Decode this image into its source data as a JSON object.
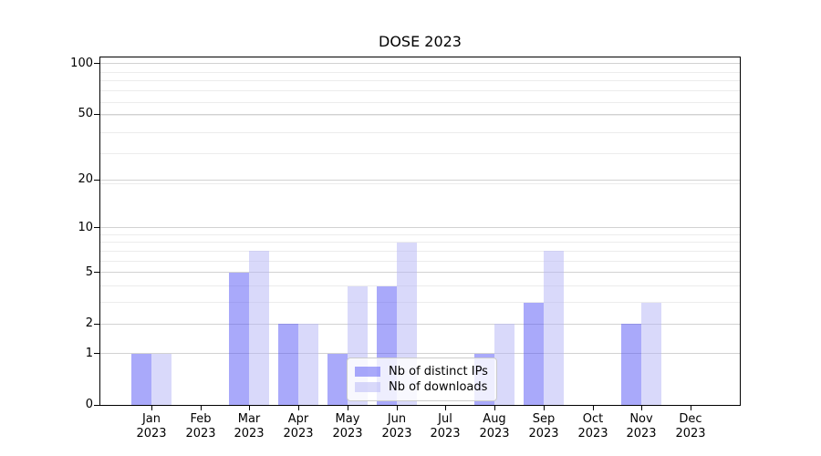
{
  "title": "DOSE 2023",
  "chart_data": {
    "type": "bar",
    "title": "DOSE 2023",
    "categories": [
      "Jan 2023",
      "Feb 2023",
      "Mar 2023",
      "Apr 2023",
      "May 2023",
      "Jun 2023",
      "Jul 2023",
      "Aug 2023",
      "Sep 2023",
      "Oct 2023",
      "Nov 2023",
      "Dec 2023"
    ],
    "series": [
      {
        "name": "Nb of distinct IPs",
        "color": "rgba(83,83,245,0.5)",
        "solid_color": "#a9a9fa",
        "values": [
          1,
          0,
          5,
          2,
          1,
          4,
          0,
          1,
          3,
          0,
          2,
          0
        ]
      },
      {
        "name": "Nb of downloads",
        "color": "rgba(179,179,245,0.5)",
        "solid_color": "#d9d9fa",
        "values": [
          1,
          0,
          7,
          2,
          4,
          8,
          0,
          2,
          7,
          0,
          3,
          0
        ]
      }
    ],
    "xlabel": "",
    "ylabel": "",
    "yscale": "log(1+x)",
    "ylim": [
      0,
      109
    ],
    "y_ticks": [
      0,
      1,
      2,
      5,
      10,
      20,
      50,
      100
    ],
    "y_minor_ticks": [
      3,
      4,
      6,
      7,
      8,
      9,
      19,
      29,
      39,
      49,
      59,
      69,
      79,
      89
    ],
    "grid": true,
    "legend_position": "lower center"
  },
  "colors": {
    "major_grid": "#d2d2d2",
    "minor_grid": "#ececec",
    "axis": "#000000",
    "legend_border": "#cbcbcb"
  }
}
